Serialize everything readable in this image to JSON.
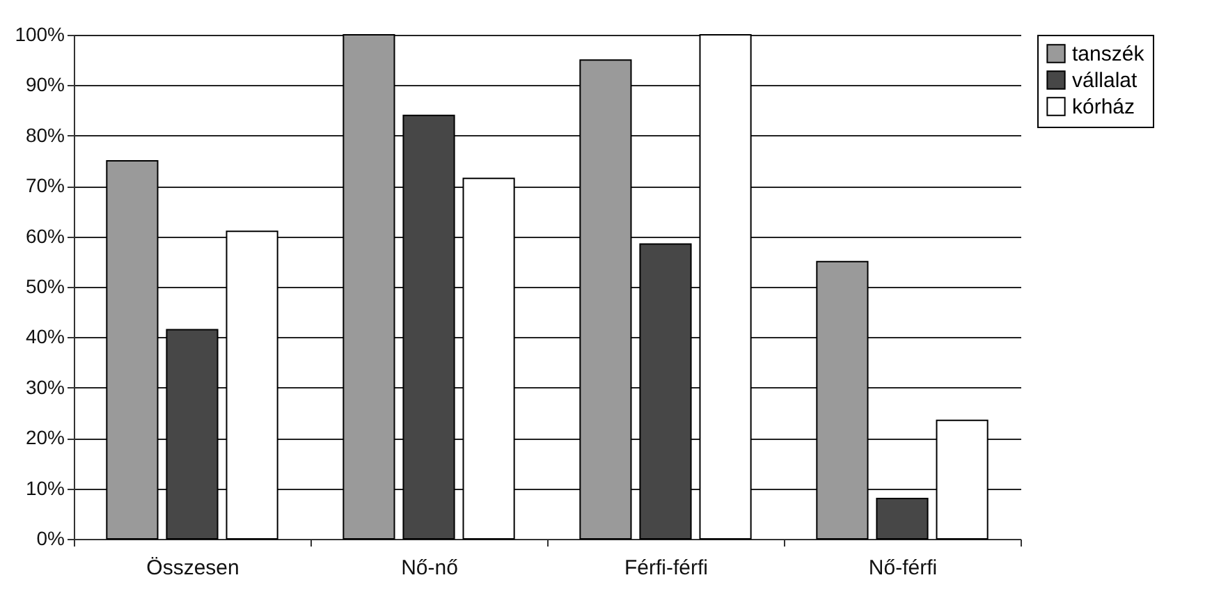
{
  "chart_data": {
    "type": "bar",
    "categories": [
      "Összesen",
      "Nő-nő",
      "Férfi-férfi",
      "Nő-férfi"
    ],
    "series": [
      {
        "name": "tanszék",
        "color": "#9a9a9a",
        "values": [
          75,
          100,
          95,
          55
        ]
      },
      {
        "name": "vállalat",
        "color": "#474747",
        "values": [
          41.5,
          84,
          58.5,
          8
        ]
      },
      {
        "name": "kórház",
        "color": "#ffffff",
        "values": [
          61,
          71.5,
          100,
          23.5
        ]
      }
    ],
    "ylim": [
      0,
      100
    ],
    "yticks": [
      {
        "value": 0,
        "label": "0%"
      },
      {
        "value": 10,
        "label": "10%"
      },
      {
        "value": 20,
        "label": "20%"
      },
      {
        "value": 30,
        "label": "30%"
      },
      {
        "value": 40,
        "label": "40%"
      },
      {
        "value": 50,
        "label": "50%"
      },
      {
        "value": 60,
        "label": "60%"
      },
      {
        "value": 70,
        "label": "70%"
      },
      {
        "value": 80,
        "label": "80%"
      },
      {
        "value": 90,
        "label": "90%"
      },
      {
        "value": 100,
        "label": "100%"
      }
    ],
    "grid": "y",
    "legend": "right"
  }
}
